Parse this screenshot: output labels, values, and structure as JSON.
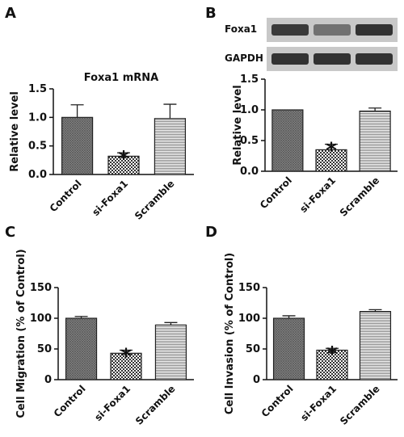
{
  "colors": {
    "bar_stroke": "#222222",
    "axis": "#111111",
    "blot_band": "#2a2a2a",
    "blot_bg": "#c8c8c8"
  },
  "chart_data": [
    {
      "panel": "A",
      "type": "bar",
      "title": "Foxa1 mRNA",
      "ylabel": "Relative level",
      "xlabel": "",
      "categories": [
        "Control",
        "si-Foxa1",
        "Scramble"
      ],
      "values": [
        1.0,
        0.32,
        0.98
      ],
      "errors": [
        0.22,
        0.06,
        0.25
      ],
      "significance": [
        "",
        "*",
        ""
      ],
      "patterns": [
        "crosshatch-fine",
        "checker",
        "horizontal-lines"
      ],
      "ylim": [
        0,
        1.5
      ],
      "yticks": [
        "0.0",
        "0.5",
        "1.0",
        "1.5"
      ],
      "grid": false
    },
    {
      "panel": "B",
      "type": "bar",
      "title": "",
      "ylabel": "Relative level",
      "xlabel": "",
      "categories": [
        "Control",
        "si-Foxa1",
        "Scramble"
      ],
      "values": [
        1.0,
        0.35,
        0.98
      ],
      "errors": [
        0.0,
        0.09,
        0.05
      ],
      "significance": [
        "",
        "*",
        ""
      ],
      "patterns": [
        "crosshatch-fine",
        "checker",
        "horizontal-lines"
      ],
      "ylim": [
        0,
        1.5
      ],
      "yticks": [
        "0.0",
        "0.5",
        "1.0",
        "1.5"
      ],
      "grid": false,
      "blot": {
        "rows": [
          "Foxa1",
          "GAPDH"
        ],
        "intensity": [
          [
            0.9,
            0.55,
            0.95
          ],
          [
            0.95,
            0.95,
            0.95
          ]
        ]
      }
    },
    {
      "panel": "C",
      "type": "bar",
      "title": "",
      "ylabel": "Cell Migration (% of Control)",
      "xlabel": "",
      "categories": [
        "Control",
        "si-Foxa1",
        "Scramble"
      ],
      "values": [
        100,
        43,
        89
      ],
      "errors": [
        3,
        5,
        4
      ],
      "significance": [
        "",
        "*",
        ""
      ],
      "patterns": [
        "crosshatch-fine",
        "checker",
        "horizontal-lines"
      ],
      "ylim": [
        0,
        150
      ],
      "yticks": [
        "0",
        "50",
        "100",
        "150"
      ],
      "grid": false
    },
    {
      "panel": "D",
      "type": "bar",
      "title": "",
      "ylabel": "Cell Invasion (% of Control)",
      "xlabel": "",
      "categories": [
        "Control",
        "si-Foxa1",
        "Scramble"
      ],
      "values": [
        100,
        48,
        111
      ],
      "errors": [
        4,
        3,
        3
      ],
      "significance": [
        "",
        "*",
        ""
      ],
      "patterns": [
        "crosshatch-fine",
        "checker",
        "horizontal-lines"
      ],
      "ylim": [
        0,
        150
      ],
      "yticks": [
        "0",
        "50",
        "100",
        "150"
      ],
      "grid": false
    }
  ]
}
